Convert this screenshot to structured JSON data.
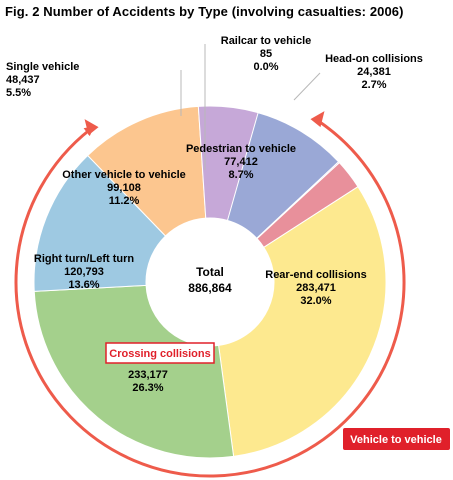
{
  "figure_title": "Fig. 2  Number of Accidents by Type  (involving casualties: 2006)",
  "total": {
    "label": "Total",
    "value": "886,864"
  },
  "group_labels": {
    "crossing": "Crossing collisions",
    "vehicle_to_vehicle": "Vehicle to vehicle"
  },
  "colors": {
    "pedestrian": "#9aa8d6",
    "railcar": "#c7a7d6",
    "head_on": "#e8909b",
    "rear_end": "#fde98f",
    "crossing": "#a4d08c",
    "right_left": "#9ec9e2",
    "other_vehicle": "#fcc68f",
    "single_vehicle": "#c6a8d8",
    "arrow": "#ee5b4b",
    "badge": "#e0202a"
  },
  "chart_data": {
    "type": "pie",
    "donut": true,
    "title": "Fig. 2  Number of Accidents by Type  (involving casualties: 2006)",
    "total": 886864,
    "slices": [
      {
        "key": "pedestrian",
        "name": "Pedestrian to vehicle",
        "count": "77,412",
        "percent": "8.7%",
        "value": 77412
      },
      {
        "key": "railcar",
        "name": "Railcar to vehicle",
        "count": "85",
        "percent": "0.0%",
        "value": 85
      },
      {
        "key": "head_on",
        "name": "Head-on collisions",
        "count": "24,381",
        "percent": "2.7%",
        "value": 24381
      },
      {
        "key": "rear_end",
        "name": "Rear-end collisions",
        "count": "283,471",
        "percent": "32.0%",
        "value": 283471
      },
      {
        "key": "crossing",
        "name": "Crossing collisions",
        "count": "233,177",
        "percent": "26.3%",
        "value": 233177
      },
      {
        "key": "right_left",
        "name": "Right turn/Left turn",
        "count": "120,793",
        "percent": "13.6%",
        "value": 120793
      },
      {
        "key": "other_vehicle",
        "name": "Other vehicle to vehicle",
        "count": "99,108",
        "percent": "11.2%",
        "value": 99108
      },
      {
        "key": "single_vehicle",
        "name": "Single vehicle",
        "count": "48,437",
        "percent": "5.5%",
        "value": 48437
      }
    ]
  }
}
